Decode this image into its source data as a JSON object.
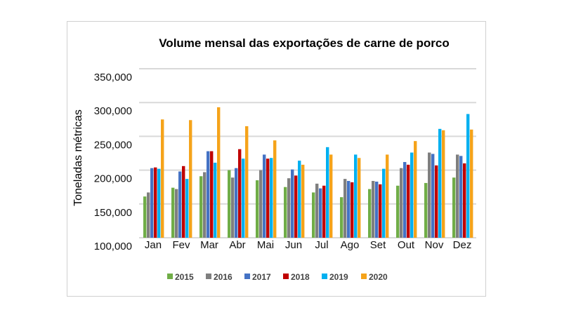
{
  "chart_data": {
    "type": "bar",
    "title": "Volume mensal das exportações de carne de porco",
    "xlabel": "",
    "ylabel": "Toneladas métricas",
    "ylim": [
      100000,
      350000
    ],
    "yticks": [
      "100,000",
      "150,000",
      "200,000",
      "250,000",
      "300,000",
      "350,000"
    ],
    "ytick_values": [
      100000,
      150000,
      200000,
      250000,
      300000,
      350000
    ],
    "grid": true,
    "legend_position": "bottom",
    "categories": [
      "Jan",
      "Fev",
      "Mar",
      "Abr",
      "Mai",
      "Jun",
      "Jul",
      "Ago",
      "Set",
      "Out",
      "Nov",
      "Dez"
    ],
    "series": [
      {
        "name": "2015",
        "color": "#70ad47",
        "values": [
          161000,
          174000,
          191000,
          200000,
          185000,
          175000,
          167000,
          160000,
          172000,
          177000,
          181000,
          189000
        ]
      },
      {
        "name": "2016",
        "color": "#7f7f7f",
        "values": [
          167000,
          172000,
          197000,
          189000,
          200000,
          188000,
          180000,
          187000,
          184000,
          203000,
          226000,
          223000
        ]
      },
      {
        "name": "2017",
        "color": "#4472c4",
        "values": [
          203000,
          198000,
          228000,
          203000,
          223000,
          201000,
          173000,
          184000,
          183000,
          212000,
          224000,
          221000
        ]
      },
      {
        "name": "2018",
        "color": "#c00000",
        "values": [
          204000,
          206000,
          228000,
          231000,
          217000,
          192000,
          177000,
          182000,
          179000,
          208000,
          207000,
          210000
        ]
      },
      {
        "name": "2019",
        "color": "#00b0f0",
        "values": [
          202000,
          187000,
          211000,
          217000,
          218000,
          214000,
          234000,
          223000,
          202000,
          226000,
          261000,
          283000
        ]
      },
      {
        "name": "2020",
        "color": "#f5a31a",
        "values": [
          275000,
          274000,
          293000,
          265000,
          244000,
          208000,
          223000,
          218000,
          223000,
          243000,
          259000,
          260000
        ]
      }
    ]
  }
}
